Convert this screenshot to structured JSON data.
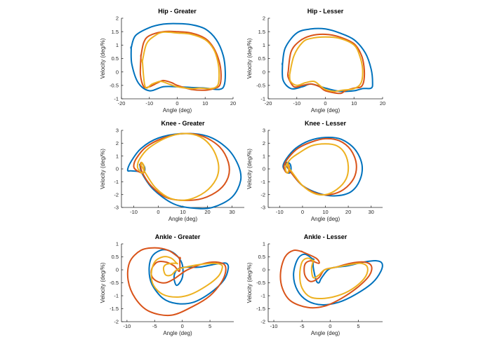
{
  "colors": {
    "series1": "#0072BD",
    "series2": "#D95319",
    "series3": "#EDB120"
  },
  "chart_data": [
    {
      "type": "line",
      "title": "Hip - Greater",
      "xlabel": "Angle (deg)",
      "ylabel": "Velocity (deg/%)",
      "xlim": [
        -20,
        20
      ],
      "ylim": [
        -1,
        2
      ],
      "xticks": [
        "-20",
        "-10",
        "0",
        "10",
        "20"
      ],
      "yticks": [
        "-1",
        "-0.5",
        "0",
        "0.5",
        "1",
        "1.5",
        "2"
      ],
      "series": [
        {
          "x": [
            -16.5,
            -15,
            -10,
            -5,
            0,
            5,
            10,
            14,
            16.5,
            17.2,
            16.8,
            15,
            10,
            5,
            0,
            -5,
            -10,
            -14,
            -16.3,
            -16.5
          ],
          "y": [
            0.9,
            1.35,
            1.65,
            1.78,
            1.8,
            1.76,
            1.6,
            1.2,
            0.6,
            0,
            -0.5,
            -0.65,
            -0.6,
            -0.58,
            -0.55,
            -0.55,
            -0.7,
            -0.4,
            0.3,
            0.9
          ]
        },
        {
          "x": [
            -13,
            -12,
            -10,
            -5,
            0,
            5,
            10,
            13,
            15,
            15.7,
            15.2,
            13,
            10,
            5,
            0,
            -2,
            -5,
            -7,
            -10,
            -12,
            -13.2,
            -13
          ],
          "y": [
            0.6,
            1.1,
            1.35,
            1.5,
            1.5,
            1.45,
            1.25,
            0.9,
            0.4,
            -0.1,
            -0.5,
            -0.62,
            -0.68,
            -0.65,
            -0.5,
            -0.4,
            -0.32,
            -0.4,
            -0.55,
            -0.55,
            -0.1,
            0.6
          ]
        },
        {
          "x": [
            -12.5,
            -11,
            -8,
            -5,
            0,
            5,
            10,
            13,
            14.5,
            15,
            14.5,
            12,
            8,
            5,
            0,
            -3,
            -6,
            -9,
            -11.5,
            -12.5
          ],
          "y": [
            0.4,
            1.05,
            1.35,
            1.48,
            1.45,
            1.4,
            1.2,
            0.85,
            0.4,
            -0.1,
            -0.5,
            -0.62,
            -0.6,
            -0.62,
            -0.55,
            -0.45,
            -0.35,
            -0.45,
            -0.55,
            0.4
          ]
        }
      ]
    },
    {
      "type": "line",
      "title": "Hip - Lesser",
      "xlabel": "Angle (deg)",
      "ylabel": "Velocity (deg/%)",
      "xlim": [
        -20,
        20
      ],
      "ylim": [
        -1,
        2
      ],
      "xticks": [
        "-20",
        "-10",
        "0",
        "10",
        "20"
      ],
      "yticks": [
        "-1",
        "-0.5",
        "0",
        "0.5",
        "1",
        "1.5",
        "2"
      ],
      "series": [
        {
          "x": [
            -15,
            -14,
            -10,
            -5,
            0,
            5,
            10,
            14,
            16,
            16.5,
            16,
            13,
            10,
            5,
            0,
            -5,
            -8,
            -12,
            -14.8,
            -15
          ],
          "y": [
            0.3,
            0.9,
            1.45,
            1.6,
            1.6,
            1.45,
            1.2,
            0.7,
            0.1,
            -0.4,
            -0.6,
            -0.62,
            -0.7,
            -0.72,
            -0.6,
            -0.45,
            -0.55,
            -0.62,
            -0.3,
            0.3
          ]
        },
        {
          "x": [
            -13,
            -12,
            -9,
            -5,
            0,
            5,
            10,
            12.5,
            13.5,
            13.5,
            12.5,
            10,
            7,
            5,
            0,
            -2,
            -5,
            -8,
            -11,
            -13,
            -13
          ],
          "y": [
            0,
            0.75,
            1.15,
            1.35,
            1.4,
            1.3,
            1.05,
            0.65,
            0.2,
            -0.3,
            -0.55,
            -0.6,
            -0.7,
            -0.8,
            -0.7,
            -0.55,
            -0.45,
            -0.5,
            -0.55,
            -0.2,
            0
          ]
        },
        {
          "x": [
            -12.5,
            -11,
            -8,
            -5,
            0,
            5,
            10,
            12,
            13,
            12.5,
            10,
            6,
            3,
            0,
            -2,
            -4,
            -7,
            -10,
            -12.2,
            -12.5
          ],
          "y": [
            -0.1,
            0.6,
            1.1,
            1.25,
            1.3,
            1.25,
            1.0,
            0.6,
            0.1,
            -0.4,
            -0.62,
            -0.68,
            -0.72,
            -0.65,
            -0.5,
            -0.35,
            -0.4,
            -0.5,
            -0.35,
            -0.1
          ]
        }
      ]
    },
    {
      "type": "line",
      "title": "Knee - Greater",
      "xlabel": "Angle (deg)",
      "ylabel": "Velocity (deg/%)",
      "xlim": [
        -15,
        35
      ],
      "ylim": [
        -3,
        3
      ],
      "xticks": [
        "-10",
        "0",
        "10",
        "20",
        "30"
      ],
      "yticks": [
        "-3",
        "-2",
        "-1",
        "0",
        "1",
        "2",
        "3"
      ],
      "series": [
        {
          "x": [
            -7.5,
            -7,
            -6,
            -5.5,
            -6,
            -8,
            -11,
            -12.5,
            -11,
            -7,
            0,
            10,
            20,
            28,
            32.5,
            33.5,
            30,
            22,
            14,
            6,
            -2,
            -6.5,
            -7.5
          ],
          "y": [
            0.3,
            0.45,
            0.3,
            0,
            -0.3,
            -0.2,
            -0.15,
            -0.1,
            0.6,
            1.6,
            2.4,
            2.75,
            2.55,
            1.6,
            0.3,
            -0.9,
            -2.2,
            -3.0,
            -3.05,
            -2.7,
            -1.6,
            -0.4,
            0.3
          ]
        },
        {
          "x": [
            -7.3,
            -7,
            -6.2,
            -5.7,
            -6,
            -7,
            -9,
            -10,
            -9,
            -5,
            2,
            10,
            18,
            25,
            28.5,
            28.5,
            25,
            18,
            10,
            3,
            -3,
            -6.5,
            -7.3
          ],
          "y": [
            0.3,
            0.5,
            0.35,
            0,
            -0.3,
            -0.3,
            -0.1,
            0.2,
            0.8,
            1.7,
            2.4,
            2.75,
            2.55,
            1.7,
            0.5,
            -0.6,
            -1.6,
            -2.3,
            -2.45,
            -2.2,
            -1.3,
            -0.3,
            0.3
          ]
        },
        {
          "x": [
            -7,
            -6.8,
            -6,
            -5.8,
            -6.2,
            -7.5,
            -8.5,
            -7.5,
            -4,
            3,
            10,
            17,
            22,
            24.5,
            23.5,
            19,
            12,
            5,
            -1,
            -5,
            -7
          ],
          "y": [
            0.3,
            0.5,
            0.3,
            0,
            -0.3,
            -0.2,
            0.2,
            0.8,
            1.6,
            2.4,
            2.75,
            2.5,
            1.6,
            0.3,
            -0.8,
            -1.8,
            -2.4,
            -2.3,
            -1.5,
            -0.4,
            0.3
          ]
        }
      ]
    },
    {
      "type": "line",
      "title": "Knee - Lesser",
      "xlabel": "Angle (deg)",
      "ylabel": "Velocity (deg/%)",
      "xlim": [
        -15,
        35
      ],
      "ylim": [
        -3,
        3
      ],
      "xticks": [
        "-10",
        "0",
        "10",
        "20",
        "30"
      ],
      "yticks": [
        "-3",
        "-2",
        "-1",
        "0",
        "1",
        "2",
        "3"
      ],
      "series": [
        {
          "x": [
            -7.3,
            -7,
            -5.5,
            -5,
            -5.5,
            -7,
            -8.5,
            -7,
            -3,
            3,
            10,
            17,
            23,
            26,
            25,
            21,
            14,
            7,
            0,
            -4.5,
            -7.3
          ],
          "y": [
            0.3,
            0.5,
            0.4,
            0,
            -0.3,
            -0.25,
            0.2,
            0.8,
            1.6,
            2.2,
            2.45,
            2.3,
            1.5,
            0.3,
            -0.9,
            -1.8,
            -2.1,
            -1.9,
            -1.3,
            -0.4,
            0.3
          ]
        },
        {
          "x": [
            -7,
            -6.8,
            -6,
            -5.8,
            -6.2,
            -7.5,
            -8,
            -6,
            -2,
            4,
            10,
            16,
            21,
            23.5,
            22.5,
            18,
            12,
            6,
            0,
            -4.5,
            -7
          ],
          "y": [
            0.3,
            0.45,
            0.3,
            0,
            -0.3,
            -0.2,
            0.3,
            0.9,
            1.6,
            2.1,
            2.35,
            2.2,
            1.5,
            0.4,
            -0.7,
            -1.6,
            -2.0,
            -1.9,
            -1.3,
            -0.4,
            0.3
          ]
        },
        {
          "x": [
            -6.8,
            -6.7,
            -6.2,
            -6,
            -6.4,
            -7.2,
            -7.3,
            -5,
            -1,
            4,
            10,
            15,
            18.5,
            20,
            19,
            15,
            10,
            5,
            0,
            -4,
            -6.8
          ],
          "y": [
            0.3,
            0.45,
            0.3,
            0,
            -0.3,
            -0.2,
            0.2,
            0.8,
            1.3,
            1.8,
            1.95,
            1.8,
            1.2,
            0.2,
            -0.8,
            -1.6,
            -2.0,
            -1.9,
            -1.3,
            -0.4,
            0.3
          ]
        }
      ]
    },
    {
      "type": "line",
      "title": "Ankle - Greater",
      "xlabel": "Angle (deg)",
      "ylabel": "Velocity (deg/%)",
      "xlim": [
        -11,
        9.3
      ],
      "ylim": [
        -2,
        1
      ],
      "xticks": [
        "-10",
        "-5",
        "0",
        "5"
      ],
      "yticks": [
        "-2",
        "-1.5",
        "-1",
        "-0.5",
        "0",
        "0.5",
        "1"
      ],
      "series": [
        {
          "x": [
            0,
            -1,
            -2.5,
            -4,
            -5.5,
            -6,
            -5.5,
            -3.5,
            -1,
            2,
            5,
            7.5,
            8.3,
            8,
            7,
            5.5,
            3,
            0.5,
            -1,
            -1.5,
            -1,
            0
          ],
          "y": [
            0.2,
            0.55,
            0.75,
            0.75,
            0.5,
            0,
            -0.55,
            -1.1,
            -1.3,
            -1.25,
            -0.9,
            -0.4,
            0.05,
            0.25,
            0.25,
            0.2,
            0.1,
            0.1,
            0,
            -0.3,
            -0.6,
            -0.3
          ]
        },
        {
          "x": [
            -0.5,
            -2.5,
            -5,
            -7.5,
            -9.5,
            -9.8,
            -8.5,
            -6,
            -2,
            2,
            5,
            7,
            7.8,
            7.6,
            6,
            4,
            2,
            0.5,
            -1.5,
            -3,
            -4.5,
            -5.5,
            -5.5,
            -4.5,
            -3,
            -1.5,
            -0.5,
            -0.5
          ],
          "y": [
            0.45,
            0.75,
            0.85,
            0.75,
            0.3,
            -0.4,
            -1.1,
            -1.6,
            -1.75,
            -1.4,
            -1.0,
            -0.5,
            -0.1,
            0.2,
            0.3,
            0.25,
            0.1,
            -0.05,
            -0.35,
            -0.5,
            -0.45,
            -0.25,
            0.05,
            0.3,
            0.3,
            0.15,
            -0.05,
            0.45
          ]
        },
        {
          "x": [
            -1,
            -2,
            -3.5,
            -5,
            -5.6,
            -5.2,
            -3.5,
            -1,
            1.5,
            4.5,
            6.5,
            7.2,
            7,
            5.5,
            3,
            0.5,
            -1,
            -2,
            -3,
            -3.4,
            -3,
            -2,
            -1
          ],
          "y": [
            0.25,
            0.45,
            0.5,
            0.3,
            -0.15,
            -0.6,
            -0.95,
            -1.05,
            -0.95,
            -0.6,
            -0.25,
            0.05,
            0.2,
            0.25,
            0.2,
            0.1,
            0,
            -0.2,
            -0.2,
            0.05,
            0.2,
            0.25,
            0.25
          ]
        }
      ]
    },
    {
      "type": "line",
      "title": "Ankle - Lesser",
      "xlabel": "Angle (deg)",
      "ylabel": "Velocity (deg/%)",
      "xlim": [
        -11,
        9.3
      ],
      "ylim": [
        -2,
        1
      ],
      "xticks": [
        "-10",
        "-5",
        "0",
        "5"
      ],
      "yticks": [
        "-2",
        "-1.5",
        "-1",
        "-0.5",
        "0",
        "0.5",
        "1"
      ],
      "series": [
        {
          "x": [
            -3,
            -4.5,
            -5.8,
            -6.5,
            -5.8,
            -4,
            -1.5,
            1.5,
            4.5,
            7.5,
            9,
            9.2,
            8.2,
            6,
            3,
            0,
            -1.5,
            -2,
            -2.5,
            -3,
            -3
          ],
          "y": [
            0.4,
            0.6,
            0.4,
            -0.2,
            -0.8,
            -1.2,
            -1.35,
            -1.25,
            -0.95,
            -0.5,
            -0.05,
            0.25,
            0.35,
            0.3,
            0.15,
            0.05,
            -0.3,
            -0.5,
            -0.4,
            0.1,
            0.4
          ]
        },
        {
          "x": [
            -5,
            -6.5,
            -8,
            -8.8,
            -8.5,
            -7,
            -4,
            -1,
            2,
            5,
            7,
            7.3,
            6,
            3.5,
            1,
            -1,
            -2,
            -3.5,
            -4.5,
            -4.5,
            -3.5,
            -2,
            -2.5,
            -5
          ],
          "y": [
            0.7,
            0.75,
            0.5,
            -0.1,
            -0.7,
            -1.2,
            -1.45,
            -1.4,
            -1.1,
            -0.65,
            -0.2,
            0.15,
            0.3,
            0.25,
            0.1,
            0,
            -0.3,
            -0.45,
            -0.2,
            0.2,
            0.35,
            0.25,
            0.45,
            0.7
          ]
        },
        {
          "x": [
            -3,
            -4,
            -5,
            -5.4,
            -5,
            -3.5,
            -1,
            2,
            4.5,
            6.3,
            6.6,
            5.5,
            3.5,
            1,
            -1,
            -2,
            -3,
            -3.3,
            -3
          ],
          "y": [
            0.35,
            0.45,
            0.3,
            -0.2,
            -0.7,
            -1.05,
            -1.1,
            -0.95,
            -0.65,
            -0.25,
            0.1,
            0.25,
            0.2,
            0.1,
            0,
            -0.2,
            -0.3,
            0.05,
            0.35
          ]
        }
      ]
    }
  ]
}
